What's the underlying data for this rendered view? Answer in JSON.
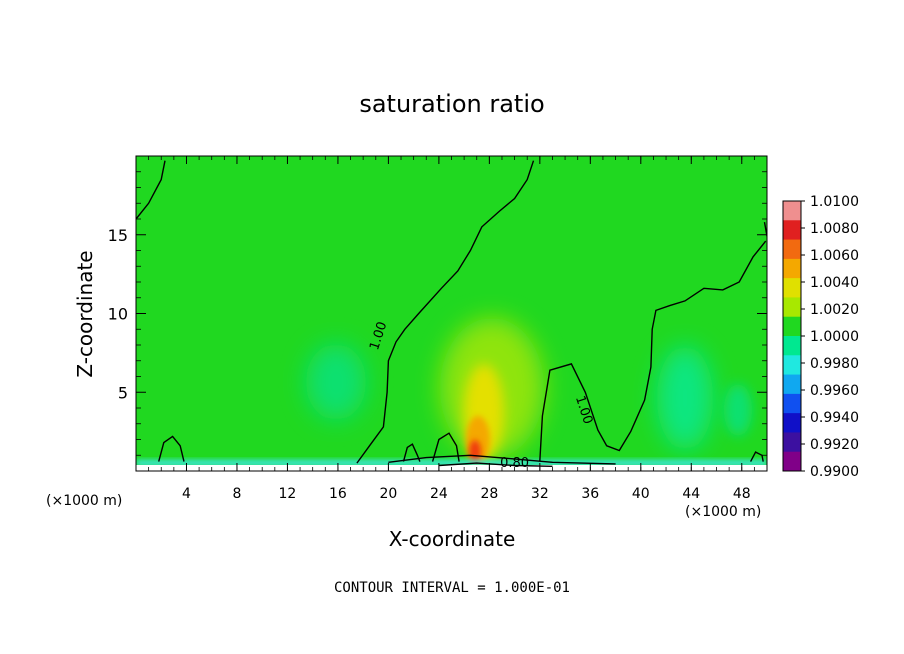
{
  "chart_data": {
    "type": "heatmap",
    "title": "saturation ratio",
    "xlabel": "X-coordinate",
    "ylabel": "Z-coordinate",
    "x_unit_left": "(×1000 m)",
    "x_unit_right": "(×1000 m)",
    "xlim": [
      0,
      50
    ],
    "ylim": [
      0,
      20
    ],
    "x_ticks": [
      4,
      8,
      12,
      16,
      20,
      24,
      28,
      32,
      36,
      40,
      44,
      48
    ],
    "y_ticks": [
      5,
      10,
      15
    ],
    "footer": "CONTOUR INTERVAL = 1.000E-01",
    "colorbar": {
      "min": 0.99,
      "max": 1.01,
      "labels": [
        "1.0100",
        "1.0080",
        "1.0060",
        "1.0040",
        "1.0020",
        "1.0000",
        "0.9980",
        "0.9960",
        "0.9940",
        "0.9920",
        "0.9900"
      ],
      "colors": [
        "#ef8f8f",
        "#e02020",
        "#f26a10",
        "#f4a800",
        "#e0e000",
        "#a8e800",
        "#20d820",
        "#00e890",
        "#20e8e0",
        "#10a8f0",
        "#1050f0",
        "#1010c8",
        "#3c10a0",
        "#800088"
      ]
    },
    "contour_labels": [
      {
        "text": "1.00",
        "x": 19.5,
        "z": 8.5
      },
      {
        "text": "1.00",
        "x": 35.2,
        "z": 3.8
      },
      {
        "text": "0.80",
        "x": 30.0,
        "z": 0.25
      }
    ],
    "contours": [
      {
        "level": 1.0,
        "points": [
          [
            0.0,
            16.0
          ],
          [
            1.0,
            17.0
          ],
          [
            2.0,
            18.5
          ],
          [
            2.3,
            19.7
          ]
        ]
      },
      {
        "level": 1.0,
        "points": [
          [
            17.5,
            0.5
          ],
          [
            18.5,
            1.6
          ],
          [
            19.6,
            2.8
          ],
          [
            19.9,
            5.0
          ],
          [
            20.0,
            7.0
          ],
          [
            20.6,
            8.2
          ],
          [
            21.3,
            9.0
          ],
          [
            22.4,
            10.0
          ],
          [
            24.2,
            11.6
          ],
          [
            25.5,
            12.7
          ],
          [
            26.5,
            14.0
          ],
          [
            27.4,
            15.5
          ],
          [
            28.8,
            16.5
          ],
          [
            30.0,
            17.3
          ],
          [
            31.0,
            18.5
          ],
          [
            31.5,
            19.7
          ]
        ]
      },
      {
        "level": 1.0,
        "points": [
          [
            32.0,
            0.6
          ],
          [
            32.2,
            3.5
          ],
          [
            32.8,
            6.4
          ],
          [
            34.5,
            6.8
          ],
          [
            35.6,
            5.0
          ],
          [
            36.6,
            2.6
          ],
          [
            37.3,
            1.6
          ],
          [
            38.3,
            1.3
          ],
          [
            39.2,
            2.5
          ],
          [
            40.3,
            4.5
          ],
          [
            40.8,
            6.6
          ],
          [
            40.9,
            9.0
          ],
          [
            41.2,
            10.2
          ],
          [
            42.3,
            10.5
          ],
          [
            43.5,
            10.8
          ],
          [
            45.0,
            11.6
          ],
          [
            46.5,
            11.5
          ],
          [
            47.8,
            12.0
          ],
          [
            48.9,
            13.6
          ],
          [
            49.9,
            14.6
          ]
        ]
      },
      {
        "level": 1.0,
        "points": [
          [
            49.8,
            15.8
          ],
          [
            50.0,
            14.9
          ]
        ]
      },
      {
        "level": 1.0,
        "points": [
          [
            1.8,
            0.6
          ],
          [
            2.2,
            1.8
          ],
          [
            2.9,
            2.2
          ],
          [
            3.5,
            1.6
          ],
          [
            3.8,
            0.6
          ]
        ]
      },
      {
        "level": 1.0,
        "points": [
          [
            21.2,
            0.6
          ],
          [
            21.5,
            1.5
          ],
          [
            21.9,
            1.7
          ],
          [
            22.3,
            1.0
          ],
          [
            22.5,
            0.6
          ]
        ]
      },
      {
        "level": 1.0,
        "points": [
          [
            23.5,
            0.6
          ],
          [
            24.0,
            2.0
          ],
          [
            24.8,
            2.4
          ],
          [
            25.4,
            1.6
          ],
          [
            25.6,
            0.6
          ]
        ]
      },
      {
        "level": 1.0,
        "points": [
          [
            48.7,
            0.6
          ],
          [
            49.1,
            1.2
          ],
          [
            49.6,
            1.0
          ],
          [
            49.7,
            0.6
          ]
        ]
      },
      {
        "level": 0.9,
        "points": [
          [
            20.0,
            0.55
          ],
          [
            23.0,
            0.85
          ],
          [
            26.5,
            1.0
          ],
          [
            29.5,
            0.8
          ],
          [
            33.0,
            0.55
          ],
          [
            38.0,
            0.45
          ]
        ]
      },
      {
        "level": 0.8,
        "points": [
          [
            24.0,
            0.35
          ],
          [
            27.0,
            0.5
          ],
          [
            30.0,
            0.35
          ],
          [
            33.0,
            0.3
          ]
        ]
      }
    ]
  }
}
